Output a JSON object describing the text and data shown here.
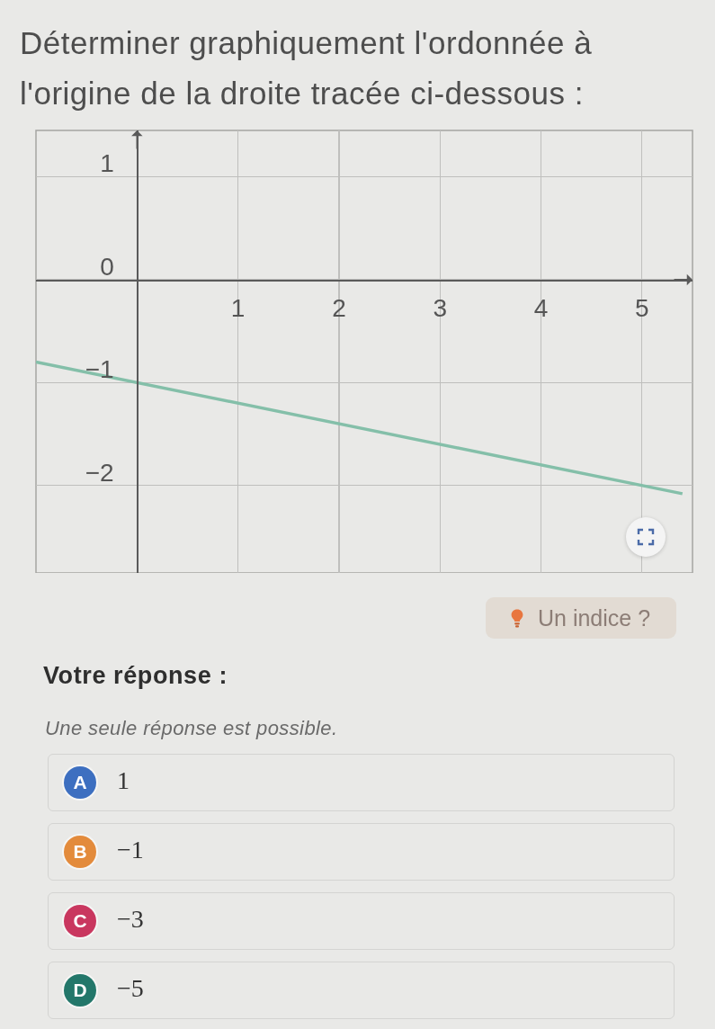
{
  "chart_data": {
    "type": "line",
    "title": "Déterminer graphiquement l'ordonnée à l'origine de la droite tracée ci-dessous :",
    "x": [
      -1,
      5.4
    ],
    "values": [
      -0.8,
      -2.08
    ],
    "color": "#84bfa9",
    "xlim": [
      -1,
      5.5
    ],
    "ylim": [
      -2.85,
      1.45
    ],
    "xticks": [
      1,
      2,
      3,
      4,
      5
    ],
    "yticks": [
      1,
      0,
      {
        "value": -1,
        "label": "−1"
      },
      {
        "value": -2,
        "label": "−2"
      }
    ],
    "grid": true,
    "annotations": [
      "Un indice ?",
      "Votre réponse :",
      "Une seule réponse est possible.",
      "A",
      "1",
      "B",
      "−1",
      "C",
      "−3",
      "D",
      "−5"
    ]
  }
}
